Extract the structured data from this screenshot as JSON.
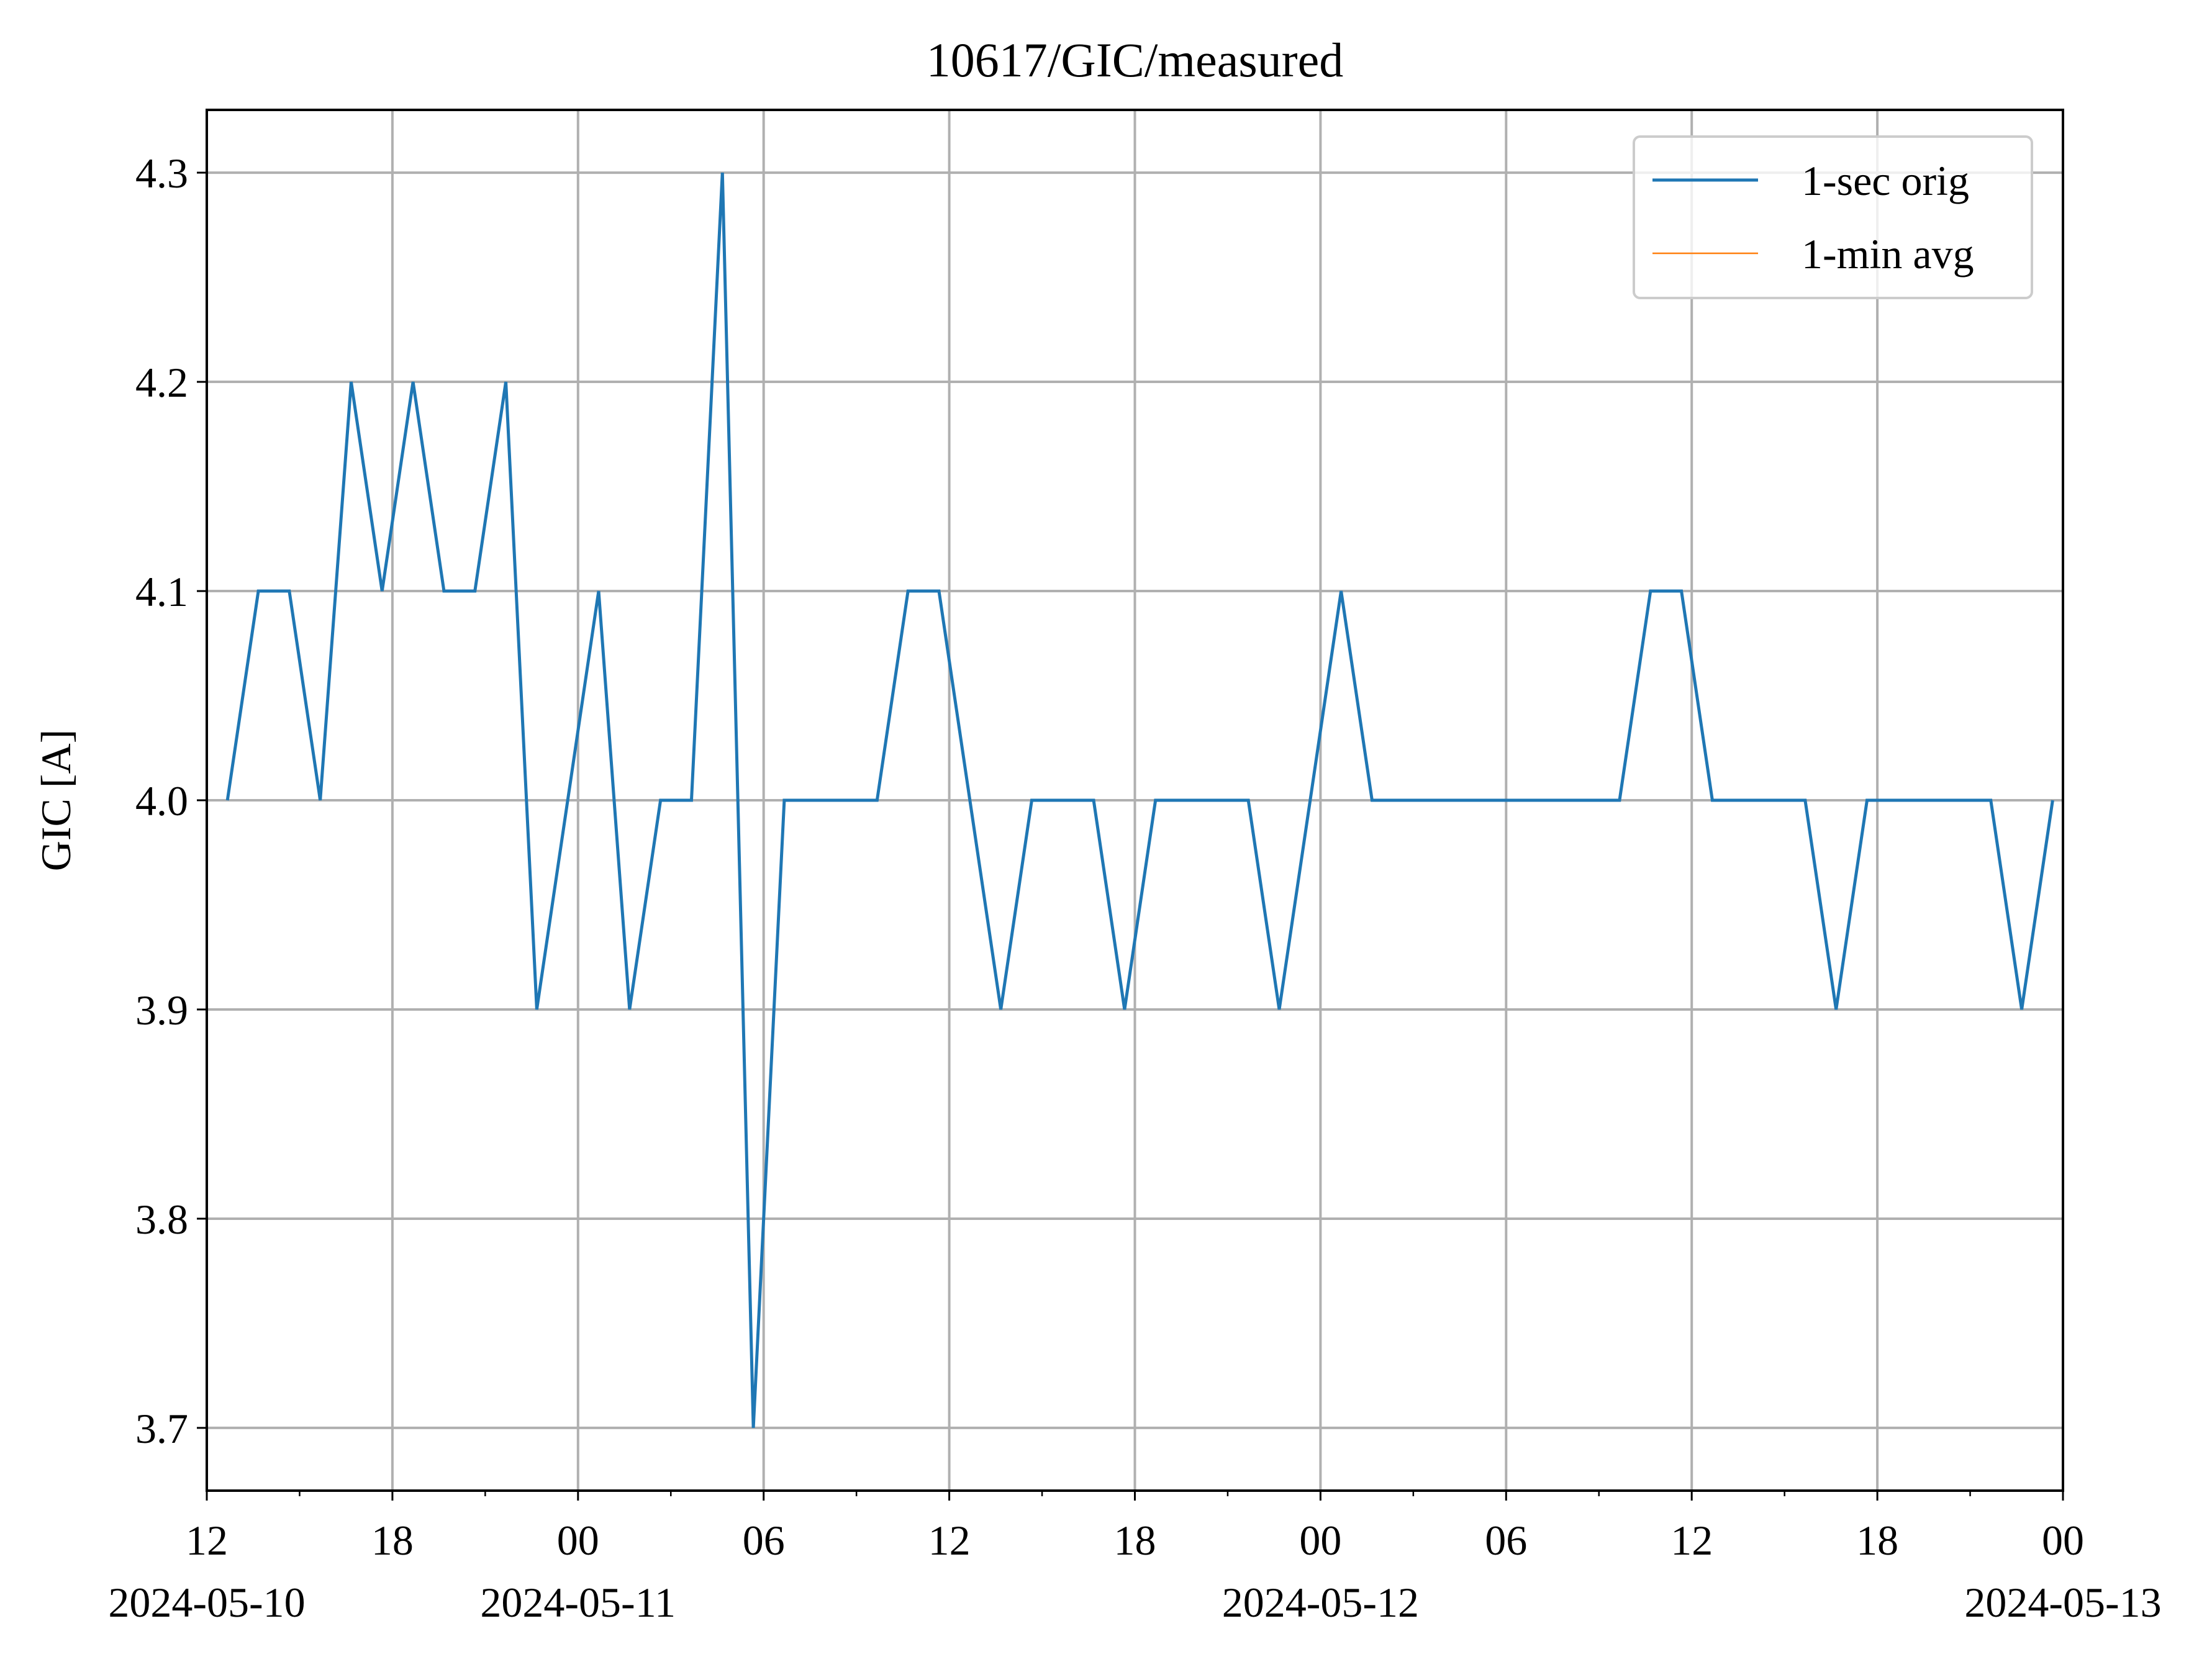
{
  "chart_data": {
    "type": "line",
    "title": "10617/GIC/measured",
    "xlabel": "",
    "ylabel": "GIC [A]",
    "xlim": [
      "2024-05-10 12:00",
      "2024-05-13 00:00"
    ],
    "ylim": [
      3.67,
      4.33
    ],
    "x_ticks": [
      {
        "value": "2024-05-10 12:00",
        "label": "12",
        "date": "2024-05-10"
      },
      {
        "value": "2024-05-10 18:00",
        "label": "18",
        "date": ""
      },
      {
        "value": "2024-05-11 00:00",
        "label": "00",
        "date": "2024-05-11"
      },
      {
        "value": "2024-05-11 06:00",
        "label": "06",
        "date": ""
      },
      {
        "value": "2024-05-11 12:00",
        "label": "12",
        "date": ""
      },
      {
        "value": "2024-05-11 18:00",
        "label": "18",
        "date": ""
      },
      {
        "value": "2024-05-12 00:00",
        "label": "00",
        "date": "2024-05-12"
      },
      {
        "value": "2024-05-12 06:00",
        "label": "06",
        "date": ""
      },
      {
        "value": "2024-05-12 12:00",
        "label": "12",
        "date": ""
      },
      {
        "value": "2024-05-12 18:00",
        "label": "18",
        "date": ""
      },
      {
        "value": "2024-05-13 00:00",
        "label": "00",
        "date": "2024-05-13"
      }
    ],
    "y_ticks": [
      3.7,
      3.8,
      3.9,
      4.0,
      4.1,
      4.2,
      4.3
    ],
    "y_tick_labels": [
      "3.7",
      "3.8",
      "3.9",
      "4.0",
      "4.1",
      "4.2",
      "4.3"
    ],
    "grid": true,
    "legend_position": "top-right",
    "series": [
      {
        "name": "1-sec orig",
        "color": "#1f77b4",
        "x": [
          "2024-05-10 12:40",
          "2024-05-10 13:40",
          "2024-05-10 14:40",
          "2024-05-10 15:40",
          "2024-05-10 16:40",
          "2024-05-10 17:40",
          "2024-05-10 18:40",
          "2024-05-10 19:40",
          "2024-05-10 20:40",
          "2024-05-10 21:40",
          "2024-05-10 22:40",
          "2024-05-10 23:40",
          "2024-05-11 00:40",
          "2024-05-11 01:40",
          "2024-05-11 02:40",
          "2024-05-11 03:40",
          "2024-05-11 04:40",
          "2024-05-11 05:40",
          "2024-05-11 06:40",
          "2024-05-11 07:40",
          "2024-05-11 08:40",
          "2024-05-11 09:40",
          "2024-05-11 10:40",
          "2024-05-11 11:40",
          "2024-05-11 12:40",
          "2024-05-11 13:40",
          "2024-05-11 14:40",
          "2024-05-11 15:40",
          "2024-05-11 16:40",
          "2024-05-11 17:40",
          "2024-05-11 18:40",
          "2024-05-11 19:40",
          "2024-05-11 20:40",
          "2024-05-11 21:40",
          "2024-05-11 22:40",
          "2024-05-11 23:40",
          "2024-05-12 00:40",
          "2024-05-12 01:40",
          "2024-05-12 02:40",
          "2024-05-12 03:40",
          "2024-05-12 04:40",
          "2024-05-12 05:40",
          "2024-05-12 06:40",
          "2024-05-12 07:40",
          "2024-05-12 08:40",
          "2024-05-12 09:40",
          "2024-05-12 10:40",
          "2024-05-12 11:40",
          "2024-05-12 12:40",
          "2024-05-12 13:40",
          "2024-05-12 14:40",
          "2024-05-12 15:40",
          "2024-05-12 16:40",
          "2024-05-12 17:40",
          "2024-05-12 18:40",
          "2024-05-12 19:40",
          "2024-05-12 20:40",
          "2024-05-12 21:40",
          "2024-05-12 22:40",
          "2024-05-12 23:40"
        ],
        "values": [
          4.0,
          4.1,
          4.1,
          4.0,
          4.2,
          4.1,
          4.2,
          4.1,
          4.1,
          4.2,
          3.9,
          4.0,
          4.1,
          3.9,
          4.0,
          4.0,
          4.3,
          3.7,
          4.0,
          4.0,
          4.0,
          4.0,
          4.1,
          4.1,
          4.0,
          3.9,
          4.0,
          4.0,
          4.0,
          3.9,
          4.0,
          4.0,
          4.0,
          4.0,
          3.9,
          4.0,
          4.1,
          4.0,
          4.0,
          4.0,
          4.0,
          4.0,
          4.0,
          4.0,
          4.0,
          4.0,
          4.1,
          4.1,
          4.0,
          4.0,
          4.0,
          4.0,
          3.9,
          4.0,
          4.0,
          4.0,
          4.0,
          4.0,
          3.9,
          4.0
        ]
      },
      {
        "name": "1-min avg",
        "color": "#ff7f0e",
        "x": [],
        "values": []
      }
    ]
  }
}
